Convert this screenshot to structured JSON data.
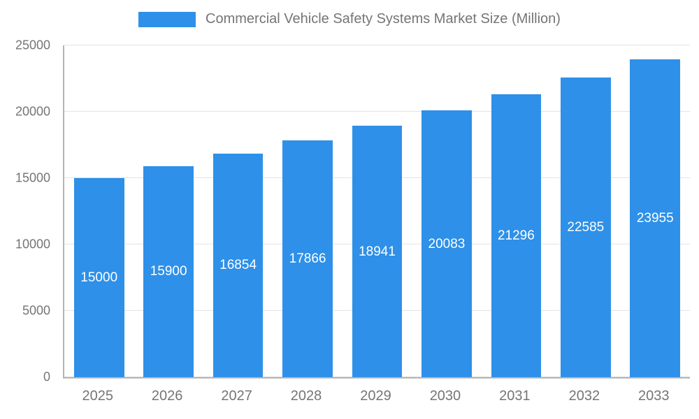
{
  "chart_data": {
    "type": "bar",
    "title": "Commercial Vehicle Safety Systems Market Size (Million)",
    "categories": [
      "2025",
      "2026",
      "2027",
      "2028",
      "2029",
      "2030",
      "2031",
      "2032",
      "2033"
    ],
    "values": [
      15000,
      15900,
      16854,
      17866,
      18941,
      20083,
      21296,
      22585,
      23955
    ],
    "xlabel": "",
    "ylabel": "",
    "ylim": [
      0,
      25000
    ],
    "yticks": [
      0,
      5000,
      10000,
      15000,
      20000,
      25000
    ],
    "grid": true,
    "legend_position": "top",
    "colors": {
      "bar": "#2E90E8",
      "value_label": "#ffffff",
      "axis_text": "#757575",
      "gridline": "#e3e3e3",
      "axis_line": "#b5b5b5"
    }
  }
}
